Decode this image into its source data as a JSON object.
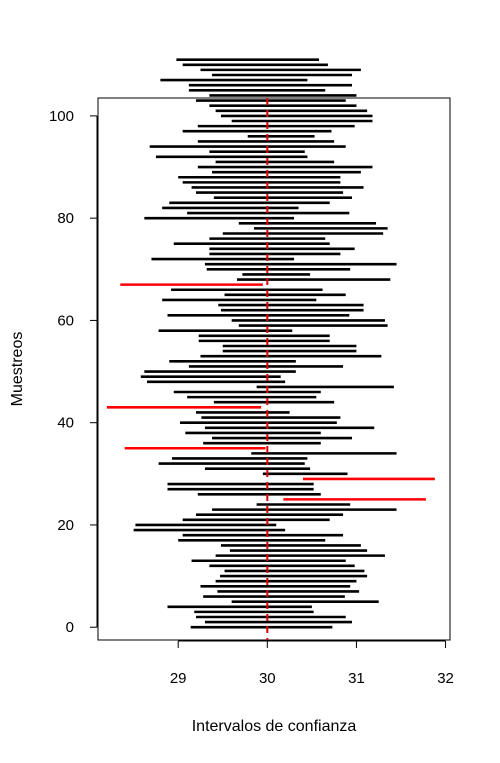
{
  "chart_data": {
    "type": "interval",
    "title": "",
    "xlabel": "Intervalos de confianza",
    "ylabel": "Muestreos",
    "xlim": [
      28.1,
      32.05
    ],
    "ylim": [
      -2.5,
      103.5
    ],
    "xticks": [
      29,
      30,
      31,
      32
    ],
    "yticks": [
      0,
      20,
      40,
      60,
      80,
      100
    ],
    "reference_line": {
      "x": 30,
      "style": "dashed",
      "color": "#dd0000"
    },
    "colors": {
      "covers_reference": "#000000",
      "misses_reference": "#ff0000"
    },
    "intervals": [
      [
        29.14,
        30.73
      ],
      [
        29.3,
        30.95
      ],
      [
        29.2,
        30.88
      ],
      [
        29.18,
        30.52
      ],
      [
        28.88,
        30.5
      ],
      [
        29.6,
        31.25
      ],
      [
        29.28,
        30.87
      ],
      [
        29.44,
        31.03
      ],
      [
        29.25,
        30.93
      ],
      [
        29.42,
        31.0
      ],
      [
        29.47,
        31.12
      ],
      [
        29.52,
        31.09
      ],
      [
        29.35,
        30.98
      ],
      [
        29.15,
        30.88
      ],
      [
        29.42,
        31.32
      ],
      [
        29.58,
        31.12
      ],
      [
        29.48,
        31.05
      ],
      [
        29.0,
        30.65
      ],
      [
        29.05,
        30.85
      ],
      [
        28.5,
        30.2
      ],
      [
        28.52,
        30.1
      ],
      [
        29.05,
        30.7
      ],
      [
        29.2,
        30.85
      ],
      [
        29.38,
        31.45
      ],
      [
        29.88,
        30.93
      ],
      [
        30.18,
        31.78
      ],
      [
        29.22,
        30.6
      ],
      [
        28.88,
        30.52
      ],
      [
        28.88,
        30.52
      ],
      [
        30.4,
        31.88
      ],
      [
        29.95,
        30.9
      ],
      [
        29.3,
        30.48
      ],
      [
        28.78,
        30.42
      ],
      [
        28.93,
        30.45
      ],
      [
        29.82,
        31.45
      ],
      [
        28.4,
        29.98
      ],
      [
        29.28,
        30.6
      ],
      [
        29.38,
        30.95
      ],
      [
        29.08,
        30.6
      ],
      [
        29.3,
        31.2
      ],
      [
        29.02,
        30.78
      ],
      [
        29.26,
        30.82
      ],
      [
        29.2,
        30.25
      ],
      [
        28.2,
        29.93
      ],
      [
        29.4,
        30.75
      ],
      [
        29.1,
        30.55
      ],
      [
        28.95,
        30.6
      ],
      [
        29.88,
        31.42
      ],
      [
        28.65,
        30.2
      ],
      [
        28.58,
        30.15
      ],
      [
        28.62,
        30.32
      ],
      [
        29.12,
        30.85
      ],
      [
        28.9,
        30.32
      ],
      [
        29.25,
        31.28
      ],
      [
        29.5,
        31.0
      ],
      [
        29.5,
        31.0
      ],
      [
        29.23,
        30.7
      ],
      [
        29.23,
        30.7
      ],
      [
        28.78,
        30.28
      ],
      [
        29.68,
        31.35
      ],
      [
        29.6,
        31.32
      ],
      [
        28.88,
        30.92
      ],
      [
        29.48,
        31.08
      ],
      [
        29.45,
        31.08
      ],
      [
        28.82,
        30.55
      ],
      [
        29.52,
        30.88
      ],
      [
        28.92,
        30.62
      ],
      [
        28.35,
        29.95
      ],
      [
        29.66,
        31.38
      ],
      [
        29.72,
        30.48
      ],
      [
        29.32,
        30.93
      ],
      [
        29.3,
        31.45
      ],
      [
        28.7,
        30.3
      ],
      [
        29.35,
        30.82
      ],
      [
        29.35,
        30.98
      ],
      [
        28.95,
        30.7
      ],
      [
        29.35,
        30.65
      ],
      [
        29.5,
        31.3
      ],
      [
        29.85,
        31.35
      ],
      [
        29.68,
        31.22
      ],
      [
        28.62,
        30.3
      ],
      [
        29.1,
        30.92
      ],
      [
        28.82,
        30.35
      ],
      [
        28.9,
        30.7
      ],
      [
        29.4,
        30.95
      ],
      [
        29.2,
        30.85
      ],
      [
        29.15,
        31.08
      ],
      [
        29.05,
        30.82
      ],
      [
        29.0,
        30.82
      ],
      [
        29.38,
        31.05
      ],
      [
        29.22,
        31.18
      ],
      [
        29.42,
        30.75
      ],
      [
        28.75,
        30.45
      ],
      [
        29.35,
        30.42
      ],
      [
        28.68,
        30.88
      ],
      [
        29.22,
        30.75
      ],
      [
        29.78,
        30.53
      ],
      [
        29.05,
        30.72
      ],
      [
        29.22,
        30.98
      ],
      [
        29.6,
        31.18
      ],
      [
        29.48,
        31.18
      ],
      [
        29.42,
        31.12
      ],
      [
        29.35,
        31.0
      ],
      [
        29.2,
        30.88
      ],
      [
        29.35,
        31.0
      ],
      [
        29.12,
        30.65
      ],
      [
        29.12,
        30.95
      ],
      [
        28.8,
        30.45
      ],
      [
        29.38,
        30.95
      ],
      [
        29.25,
        31.05
      ],
      [
        29.05,
        30.68
      ],
      [
        28.98,
        30.58
      ]
    ]
  }
}
